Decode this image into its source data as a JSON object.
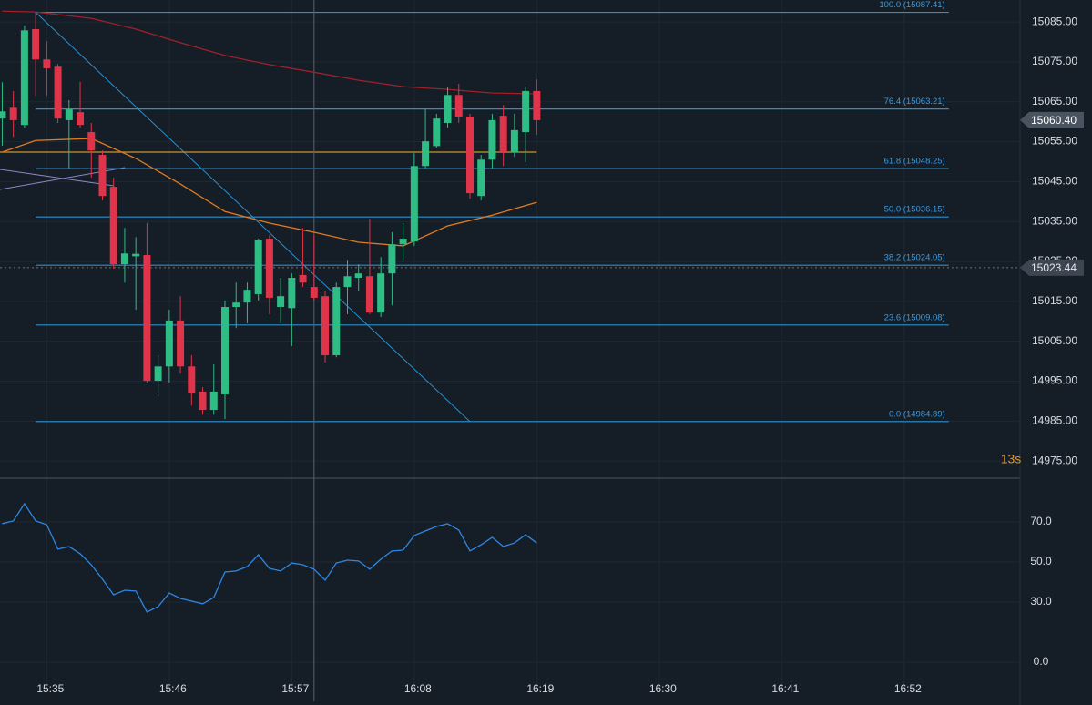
{
  "chart_data": {
    "type": "candlestick",
    "xlim": [
      930.8,
      1022.4
    ],
    "ylim": [
      14970.7,
      15090.5
    ],
    "yticks": [
      {
        "value": 14975,
        "label": "14975.00"
      },
      {
        "value": 14985,
        "label": "14985.00"
      },
      {
        "value": 14995,
        "label": "14995.00"
      },
      {
        "value": 15005,
        "label": "15005.00"
      },
      {
        "value": 15015,
        "label": "15015.00"
      },
      {
        "value": 15025,
        "label": "15025.00"
      },
      {
        "value": 15035,
        "label": "15035.00"
      },
      {
        "value": 15045,
        "label": "15045.00"
      },
      {
        "value": 15055,
        "label": "15055.00"
      },
      {
        "value": 15065,
        "label": "15065.00"
      },
      {
        "value": 15075,
        "label": "15075.00"
      },
      {
        "value": 15085,
        "label": "15085.00"
      }
    ],
    "xticks": [
      {
        "value": 935,
        "label": "15:35"
      },
      {
        "value": 946,
        "label": "15:46"
      },
      {
        "value": 957,
        "label": "15:57"
      },
      {
        "value": 968,
        "label": "16:08"
      },
      {
        "value": 979,
        "label": "16:19"
      },
      {
        "value": 990,
        "label": "16:30"
      },
      {
        "value": 1001,
        "label": "16:41"
      },
      {
        "value": 1012,
        "label": "16:52"
      }
    ],
    "grid": true,
    "up_color": "#2ebd85",
    "down_color": "#e0344a",
    "candles": {
      "x": [
        931,
        932,
        933,
        934,
        935,
        936,
        937,
        938,
        939,
        940,
        941,
        942,
        943,
        944,
        945,
        946,
        947,
        948,
        949,
        950,
        951,
        952,
        953,
        954,
        955,
        956,
        957,
        958,
        959,
        960,
        961,
        962,
        963,
        964,
        965,
        966,
        967,
        968,
        969,
        970,
        971,
        972,
        973,
        974,
        975,
        976,
        977,
        978,
        979
      ],
      "open": [
        15060.8,
        15063.5,
        15059.2,
        15083.2,
        15075.6,
        15073.8,
        15060.4,
        15062.4,
        15057.4,
        15051.7,
        15043.7,
        15024.3,
        15026.3,
        15026.6,
        14995.1,
        14998.7,
        15010.2,
        14998.7,
        14992.4,
        14987.8,
        14991.7,
        15013.6,
        15014.7,
        15016.8,
        15030.7,
        15013.6,
        15013.3,
        15021.6,
        15018.6,
        15016.3,
        15001.5,
        15018.6,
        15020.9,
        15021.3,
        15012.2,
        15022.0,
        15029.3,
        15030.0,
        15048.9,
        15053.9,
        15059.7,
        15066.7,
        15061.3,
        15041.4,
        15050.5,
        15061.5,
        15052.4,
        15057.4,
        15067.7
      ],
      "high": [
        15069.9,
        15067.7,
        15084.1,
        15087.4,
        15080.2,
        15074.5,
        15065.4,
        15070.0,
        15059.7,
        15052.8,
        15046.0,
        15033.4,
        15031.1,
        15034.6,
        15001.5,
        15012.9,
        15016.3,
        15001.5,
        14993.5,
        14999.2,
        15015.2,
        15019.7,
        15019.7,
        15030.7,
        15031.6,
        15020.9,
        15022.0,
        15033.4,
        15031.6,
        15017.5,
        15019.7,
        15025.4,
        15024.3,
        15035.7,
        15026.1,
        15032.3,
        15034.6,
        15052.1,
        15063.1,
        15062.0,
        15068.6,
        15069.5,
        15062.0,
        15051.7,
        15062.0,
        15064.2,
        15062.0,
        15068.8,
        15070.6
      ],
      "low": [
        15054.0,
        15056.2,
        15058.5,
        15066.5,
        15066.5,
        15059.7,
        15048.3,
        15058.5,
        15046.0,
        15040.3,
        15023.2,
        15019.7,
        15012.9,
        14994.6,
        14991.2,
        14994.6,
        14996.9,
        14988.9,
        14986.6,
        14986.6,
        14985.5,
        15008.3,
        15009.5,
        15015.2,
        15011.8,
        15009.5,
        15003.8,
        15018.6,
        15015.2,
        14999.7,
        15001.0,
        15011.8,
        15017.5,
        15011.8,
        15011.1,
        15014.0,
        15025.4,
        15028.9,
        15048.3,
        15053.5,
        15058.5,
        15059.7,
        15040.7,
        15040.3,
        15048.3,
        15048.9,
        15051.2,
        15049.9,
        15056.7
      ],
      "close": [
        15062.6,
        15060.4,
        15082.9,
        15075.6,
        15073.4,
        15060.8,
        15063.1,
        15059.2,
        15052.8,
        15041.4,
        15024.3,
        15027.0,
        15026.9,
        14995.1,
        14998.7,
        15010.2,
        14998.7,
        14991.9,
        14987.8,
        14992.4,
        15013.6,
        15014.7,
        15017.9,
        15030.5,
        15015.9,
        15016.3,
        15020.9,
        15019.7,
        15015.9,
        15001.5,
        15018.6,
        15021.3,
        15022.0,
        15012.2,
        15022.0,
        15029.3,
        15030.7,
        15048.9,
        15055.1,
        15060.8,
        15066.7,
        15061.3,
        15042.1,
        15050.5,
        15060.4,
        15052.4,
        15057.9,
        15067.7,
        15060.4
      ]
    },
    "series": [
      {
        "color": "#a0202c",
        "x": [
          931,
          934,
          939,
          943,
          947,
          951,
          955,
          959,
          963,
          967,
          971,
          975,
          979
        ],
        "values": [
          15087.7,
          15087.5,
          15085.9,
          15083.2,
          15079.8,
          15076.6,
          15074.3,
          15072.4,
          15070.4,
          15068.8,
          15068.1,
          15067.2,
          15067.0
        ]
      },
      {
        "color": "#e07b22",
        "x": [
          931,
          934,
          939,
          943,
          947,
          951,
          955,
          959,
          963,
          967,
          971,
          975,
          979
        ],
        "values": [
          15052.4,
          15055.3,
          15055.8,
          15050.8,
          15044.4,
          15037.5,
          15034.6,
          15032.3,
          15029.8,
          15028.9,
          15033.9,
          15036.6,
          15039.8
        ]
      }
    ],
    "horizontal_line": {
      "color": "#c9962a",
      "value": 15052.4
    },
    "trendline": {
      "color": "#2b8fcf",
      "x": [
        934,
        973
      ],
      "values": [
        15087.41,
        14984.89
      ]
    },
    "fib": {
      "color": "#2b8fcf",
      "x": [
        934,
        1016
      ],
      "levels": [
        {
          "value": 15087.41,
          "label": "100.0 (15087.41)"
        },
        {
          "value": 15063.21,
          "label": "76.4 (15063.21)"
        },
        {
          "value": 15048.25,
          "label": "61.8 (15048.25)"
        },
        {
          "value": 15036.15,
          "label": "50.0 (15036.15)"
        },
        {
          "value": 15024.05,
          "label": "38.2 (15024.05)"
        },
        {
          "value": 15009.08,
          "label": "23.6 (15009.08)"
        },
        {
          "value": 14984.89,
          "label": "0.0 (14984.89)"
        }
      ]
    },
    "current_price": {
      "value": 15060.4,
      "label": "15060.40"
    },
    "crosshair": {
      "x": 959,
      "value": 15023.44,
      "label": "15023.44"
    },
    "countdown": "13s",
    "rsi": {
      "color": "#2f86e0",
      "ylim": [
        -8.2,
        91.8
      ],
      "yticks": [
        {
          "value": 0,
          "label": "0.0"
        },
        {
          "value": 30,
          "label": "30.0"
        },
        {
          "value": 50,
          "label": "50.0"
        },
        {
          "value": 70,
          "label": "70.0"
        }
      ],
      "values": [
        69.1,
        70.5,
        79.1,
        70.5,
        68.6,
        56.4,
        57.7,
        54.1,
        48.6,
        41.4,
        33.6,
        35.9,
        35.5,
        25.0,
        27.7,
        34.5,
        31.8,
        30.5,
        29.1,
        32.3,
        45.0,
        45.5,
        47.7,
        53.6,
        46.8,
        45.5,
        49.5,
        48.6,
        46.4,
        40.9,
        49.5,
        50.9,
        50.5,
        46.4,
        51.4,
        55.5,
        55.9,
        63.2,
        65.5,
        67.7,
        69.1,
        65.9,
        55.5,
        58.6,
        62.3,
        57.7,
        59.5,
        63.6,
        59.5
      ]
    }
  }
}
